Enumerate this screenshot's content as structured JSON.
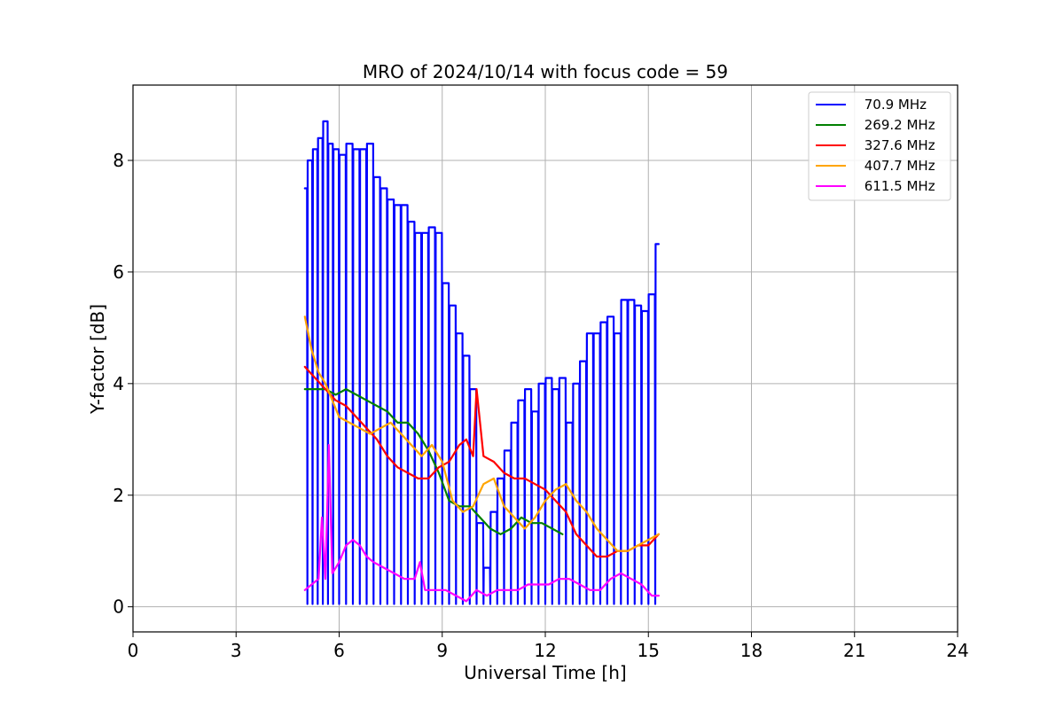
{
  "chart_data": {
    "type": "line",
    "title": "MRO of 2024/10/14 with focus code = 59",
    "xlabel": "Universal Time [h]",
    "ylabel": "Y-factor [dB]",
    "xlim": [
      0,
      24
    ],
    "ylim": [
      -0.45,
      9.35
    ],
    "xticks": [
      0,
      3,
      6,
      9,
      12,
      15,
      18,
      21,
      24
    ],
    "yticks": [
      0,
      2,
      4,
      6,
      8
    ],
    "grid": true,
    "legend_position": "top-right",
    "series": [
      {
        "name": " 70.9 MHz",
        "color": "#0000ff",
        "x": [
          5.0,
          5.15,
          5.3,
          5.45,
          5.6,
          5.75,
          5.9,
          6.1,
          6.3,
          6.5,
          6.7,
          6.9,
          7.1,
          7.3,
          7.5,
          7.7,
          7.9,
          8.1,
          8.3,
          8.5,
          8.7,
          8.9,
          9.1,
          9.3,
          9.5,
          9.7,
          9.9,
          10.1,
          10.3,
          10.5,
          10.7,
          10.9,
          11.1,
          11.3,
          11.5,
          11.7,
          11.9,
          12.1,
          12.3,
          12.5,
          12.7,
          12.9,
          13.1,
          13.3,
          13.5,
          13.7,
          13.9,
          14.1,
          14.3,
          14.5,
          14.7,
          14.9,
          15.1,
          15.3
        ],
        "y": [
          7.5,
          8.0,
          8.2,
          8.4,
          8.7,
          8.3,
          8.2,
          8.1,
          8.3,
          8.2,
          8.2,
          8.3,
          7.7,
          7.5,
          7.3,
          7.2,
          7.2,
          6.9,
          6.7,
          6.7,
          6.8,
          6.7,
          5.8,
          5.4,
          4.9,
          4.5,
          3.9,
          1.5,
          0.7,
          1.7,
          2.3,
          2.8,
          3.3,
          3.7,
          3.9,
          3.5,
          4.0,
          4.1,
          3.9,
          4.1,
          3.3,
          4.0,
          4.4,
          4.9,
          4.9,
          5.1,
          5.2,
          4.9,
          5.5,
          5.5,
          5.4,
          5.3,
          5.6,
          6.5
        ],
        "spike_low": 0.05
      },
      {
        "name": " 269.2 MHz",
        "color": "#008000",
        "x": [
          5.0,
          5.3,
          5.6,
          5.9,
          6.2,
          6.5,
          6.8,
          7.1,
          7.4,
          7.7,
          8.0,
          8.3,
          8.6,
          8.9,
          9.2,
          9.5,
          9.8,
          10.1,
          10.4,
          10.7,
          11.0,
          11.3,
          11.6,
          11.9,
          12.2,
          12.5
        ],
        "y": [
          3.9,
          3.9,
          3.9,
          3.8,
          3.9,
          3.8,
          3.7,
          3.6,
          3.5,
          3.3,
          3.3,
          3.1,
          2.8,
          2.4,
          1.9,
          1.8,
          1.8,
          1.6,
          1.4,
          1.3,
          1.4,
          1.6,
          1.5,
          1.5,
          1.4,
          1.3
        ]
      },
      {
        "name": " 327.6 MHz",
        "color": "#ff0000",
        "x": [
          5.0,
          5.3,
          5.6,
          5.9,
          6.2,
          6.5,
          6.8,
          7.1,
          7.4,
          7.7,
          8.0,
          8.3,
          8.6,
          8.9,
          9.2,
          9.5,
          9.7,
          9.9,
          10.0,
          10.2,
          10.5,
          10.8,
          11.1,
          11.4,
          11.7,
          12.0,
          12.3,
          12.6,
          12.9,
          13.2,
          13.5,
          13.8,
          14.1,
          14.4,
          14.7,
          15.0,
          15.3
        ],
        "y": [
          4.3,
          4.1,
          3.9,
          3.7,
          3.6,
          3.4,
          3.2,
          3.0,
          2.7,
          2.5,
          2.4,
          2.3,
          2.3,
          2.5,
          2.6,
          2.9,
          3.0,
          2.7,
          3.9,
          2.7,
          2.6,
          2.4,
          2.3,
          2.3,
          2.2,
          2.1,
          1.9,
          1.7,
          1.3,
          1.1,
          0.9,
          0.9,
          1.0,
          1.0,
          1.1,
          1.1,
          1.3
        ]
      },
      {
        "name": " 407.7 MHz",
        "color": "#ffa500",
        "x": [
          5.0,
          5.2,
          5.4,
          5.6,
          5.8,
          6.0,
          6.3,
          6.6,
          6.9,
          7.2,
          7.5,
          7.8,
          8.1,
          8.4,
          8.7,
          9.0,
          9.3,
          9.6,
          9.9,
          10.2,
          10.5,
          10.8,
          11.1,
          11.4,
          11.7,
          12.0,
          12.3,
          12.6,
          12.9,
          13.2,
          13.5,
          13.8,
          14.1,
          14.4,
          14.7,
          15.0,
          15.3
        ],
        "y": [
          5.2,
          4.6,
          4.2,
          4.0,
          3.7,
          3.4,
          3.3,
          3.2,
          3.1,
          3.2,
          3.3,
          3.1,
          2.9,
          2.7,
          2.9,
          2.6,
          1.9,
          1.7,
          1.8,
          2.2,
          2.3,
          1.8,
          1.6,
          1.4,
          1.6,
          1.9,
          2.1,
          2.2,
          1.9,
          1.7,
          1.4,
          1.2,
          1.0,
          1.0,
          1.1,
          1.2,
          1.3
        ]
      },
      {
        "name": " 611.5 MHz",
        "color": "#ff00ff",
        "x": [
          5.0,
          5.2,
          5.4,
          5.5,
          5.6,
          5.7,
          5.8,
          6.0,
          6.2,
          6.4,
          6.6,
          6.8,
          7.0,
          7.3,
          7.6,
          7.9,
          8.2,
          8.35,
          8.5,
          8.8,
          9.1,
          9.4,
          9.7,
          10.0,
          10.3,
          10.6,
          10.9,
          11.2,
          11.5,
          11.8,
          12.1,
          12.4,
          12.7,
          13.0,
          13.3,
          13.6,
          13.9,
          14.2,
          14.5,
          14.8,
          15.1,
          15.3
        ],
        "y": [
          0.3,
          0.4,
          0.5,
          1.6,
          0.5,
          2.9,
          0.6,
          0.8,
          1.1,
          1.2,
          1.1,
          0.9,
          0.8,
          0.7,
          0.6,
          0.5,
          0.5,
          0.8,
          0.3,
          0.3,
          0.3,
          0.2,
          0.1,
          0.3,
          0.2,
          0.3,
          0.3,
          0.3,
          0.4,
          0.4,
          0.4,
          0.5,
          0.5,
          0.4,
          0.3,
          0.3,
          0.5,
          0.6,
          0.5,
          0.4,
          0.2,
          0.2
        ]
      }
    ]
  }
}
